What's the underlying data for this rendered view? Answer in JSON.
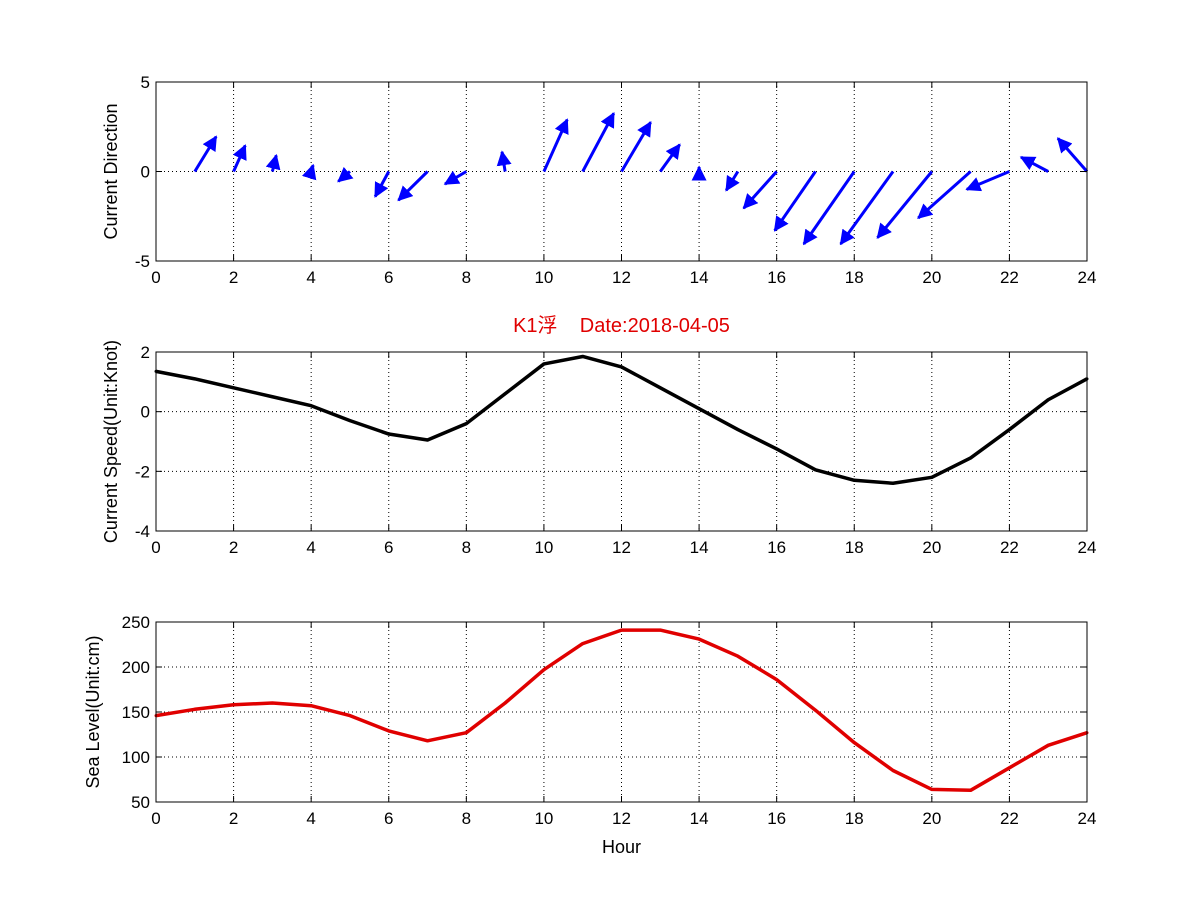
{
  "chart_data": [
    {
      "type": "quiver",
      "ylabel": "Current Direction",
      "xlim": [
        0,
        24
      ],
      "ylim": [
        -5,
        5
      ],
      "xticks": [
        0,
        2,
        4,
        6,
        8,
        10,
        12,
        14,
        16,
        18,
        20,
        22,
        24
      ],
      "yticks": [
        -5,
        0,
        5
      ],
      "grid": true,
      "color": "#0000ff",
      "x": [
        1,
        2,
        3,
        4,
        5,
        6,
        7,
        8,
        9,
        10,
        11,
        12,
        13,
        14,
        15,
        16,
        17,
        18,
        19,
        20,
        21,
        22,
        23,
        24
      ],
      "u": [
        -0.55,
        -0.3,
        -0.1,
        -0.05,
        0.3,
        0.35,
        0.75,
        0.55,
        0.08,
        -0.6,
        -0.8,
        -0.75,
        -0.5,
        0.0,
        0.3,
        0.85,
        1.05,
        1.3,
        1.35,
        1.4,
        1.35,
        1.1,
        0.7,
        0.75
      ],
      "v": [
        1.95,
        1.45,
        0.9,
        0.35,
        -0.55,
        -1.4,
        -1.6,
        -0.7,
        1.1,
        2.9,
        3.25,
        2.75,
        1.5,
        0.25,
        -1.05,
        -2.05,
        -3.3,
        -4.05,
        -4.05,
        -3.7,
        -2.6,
        -1.0,
        0.8,
        1.85
      ]
    },
    {
      "type": "line",
      "title": "K1浮    Date:2018-04-05",
      "ylabel": "Current Speed(Unit:Knot)",
      "xlim": [
        0,
        24
      ],
      "ylim": [
        -4,
        2
      ],
      "xticks": [
        0,
        2,
        4,
        6,
        8,
        10,
        12,
        14,
        16,
        18,
        20,
        22,
        24
      ],
      "yticks": [
        -4,
        -2,
        0,
        2
      ],
      "grid": true,
      "color": "#000000",
      "x": [
        0,
        1,
        2,
        3,
        4,
        5,
        6,
        7,
        8,
        9,
        10,
        11,
        12,
        13,
        14,
        15,
        16,
        17,
        18,
        19,
        20,
        21,
        22,
        23,
        24
      ],
      "y": [
        1.35,
        1.1,
        0.8,
        0.5,
        0.2,
        -0.3,
        -0.75,
        -0.95,
        -0.4,
        0.6,
        1.6,
        1.85,
        1.5,
        0.8,
        0.1,
        -0.6,
        -1.25,
        -1.95,
        -2.3,
        -2.4,
        -2.2,
        -1.55,
        -0.6,
        0.4,
        1.1
      ]
    },
    {
      "type": "line",
      "xlabel": "Hour",
      "ylabel": "Sea Level(Unit:cm)",
      "xlim": [
        0,
        24
      ],
      "ylim": [
        50,
        250
      ],
      "xticks": [
        0,
        2,
        4,
        6,
        8,
        10,
        12,
        14,
        16,
        18,
        20,
        22,
        24
      ],
      "yticks": [
        50,
        100,
        150,
        200,
        250
      ],
      "grid": true,
      "color": "#e00000",
      "x": [
        0,
        1,
        2,
        3,
        4,
        5,
        6,
        7,
        8,
        9,
        10,
        11,
        12,
        13,
        14,
        15,
        16,
        17,
        18,
        19,
        20,
        21,
        22,
        23,
        24
      ],
      "y": [
        146,
        153,
        158,
        160,
        157,
        146,
        129,
        118,
        127,
        160,
        197,
        226,
        241,
        241,
        231,
        212,
        186,
        152,
        116,
        85,
        64,
        63,
        88,
        113,
        127
      ]
    }
  ]
}
